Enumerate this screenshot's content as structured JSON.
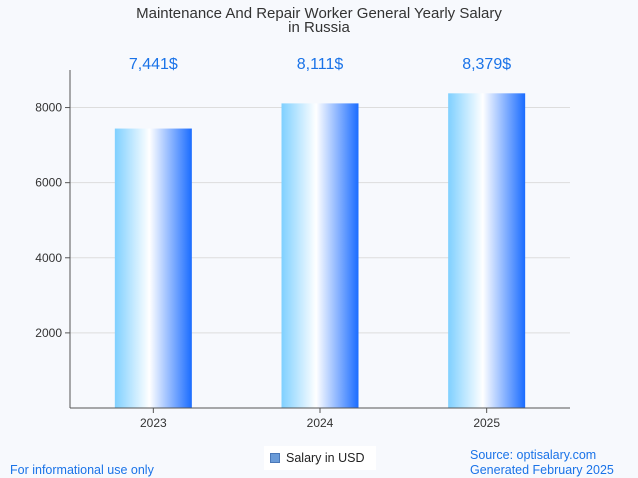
{
  "chart_data": {
    "type": "bar",
    "title": "Maintenance And Repair Worker General Yearly Salary",
    "subtitle": "in Russia",
    "categories": [
      "2023",
      "2024",
      "2025"
    ],
    "series": [
      {
        "name": "Salary in USD",
        "values": [
          7441,
          8111,
          8379
        ]
      }
    ],
    "data_labels": [
      "7,441$",
      "8,111$",
      "8,379$"
    ],
    "y_ticks": [
      2000,
      4000,
      6000,
      8000
    ],
    "ylim": [
      0,
      9000
    ],
    "grid": true,
    "legend": "bottom-center",
    "colors": {
      "bar_light": "#7fd0ff",
      "bar_mid": "#ffffff",
      "bar_dark": "#1a6cff",
      "label": "#1a73e8",
      "grid": "#dddddd",
      "axis": "#555555"
    }
  },
  "legend": {
    "label": "Salary in USD"
  },
  "footer": {
    "note": "For informational use only",
    "source": "Source: optisalary.com",
    "generated": "Generated February 2025"
  }
}
